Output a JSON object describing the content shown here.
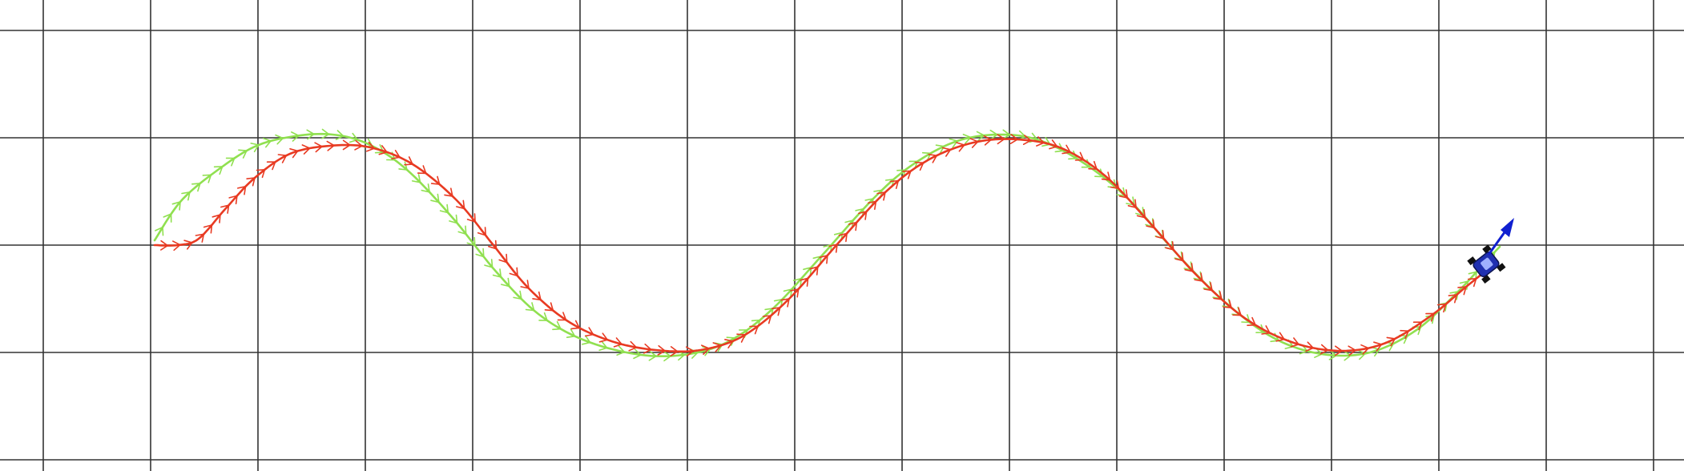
{
  "scene": {
    "background": "#ffffff",
    "grid_color": "#333333",
    "reference_color": "#90e050",
    "actual_color": "#e83a22",
    "robot_body_color": "#2030b0",
    "robot_wheel_color": "#111111",
    "heading_arrow_color": "#1020d0"
  },
  "robot": {
    "icon": "car-robot-icon"
  }
}
